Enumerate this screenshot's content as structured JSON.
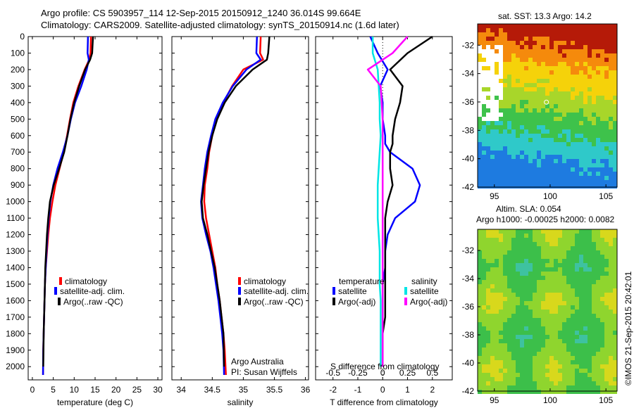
{
  "header": {
    "line1": "Argo profile: CS 5903957_114 12-Sep-2015 20150912_1240 36.014S 99.664E",
    "line2": "Climatology: CARS2009. Satellite-adjusted climatology: synTS_20150914.nc (1.6d later)"
  },
  "colors": {
    "climatology": "#ff0000",
    "satellite": "#0000ff",
    "argo": "#000000",
    "sat_salinity": "#00e5e5",
    "argo_salinity": "#ff00ff"
  },
  "chart_data": [
    {
      "type": "line",
      "xlabel": "temperature (deg C)",
      "ylabel": "",
      "xlim": [
        -1,
        31
      ],
      "ylim": [
        2080,
        0
      ],
      "xticks": [
        "0",
        "5",
        "10",
        "15",
        "20",
        "25",
        "30"
      ],
      "yticks": [
        "0",
        "100",
        "200",
        "300",
        "400",
        "500",
        "600",
        "700",
        "800",
        "900",
        "1000",
        "1100",
        "1200",
        "1300",
        "1400",
        "1500",
        "1600",
        "1700",
        "1800",
        "1900",
        "2000"
      ],
      "legend": [
        "climatology",
        "satellite-adj. clim.",
        "Argo(..raw -QC)"
      ],
      "series": [
        {
          "name": "climatology",
          "x": [
            14.0,
            13.9,
            13.6,
            12.5,
            11.0,
            9.8,
            9.0,
            8.3,
            7.5,
            6.5,
            5.5,
            4.8,
            4.2,
            3.8,
            3.5,
            3.2,
            3.0,
            2.9,
            2.8,
            2.7,
            2.6,
            2.55
          ],
          "y": [
            0,
            100,
            140,
            200,
            300,
            400,
            500,
            600,
            700,
            800,
            900,
            1000,
            1100,
            1200,
            1300,
            1400,
            1500,
            1600,
            1700,
            1800,
            1900,
            2050
          ]
        },
        {
          "name": "satellite-adj. clim.",
          "x": [
            13.3,
            13.2,
            13.5,
            13.0,
            11.7,
            10.2,
            9.2,
            8.4,
            7.3,
            6.0,
            5.0,
            4.3,
            3.9,
            3.6,
            3.4,
            3.2,
            3.0,
            2.9,
            2.8,
            2.7,
            2.6,
            2.55
          ],
          "y": [
            0,
            100,
            140,
            200,
            300,
            400,
            500,
            600,
            700,
            800,
            900,
            1000,
            1100,
            1200,
            1300,
            1400,
            1500,
            1600,
            1700,
            1800,
            1900,
            2050
          ]
        },
        {
          "name": "Argo(..raw -QC)",
          "x": [
            14.5,
            14.3,
            13.8,
            12.6,
            11.2,
            10.0,
            9.1,
            8.4,
            7.6,
            6.4,
            5.1,
            4.2,
            3.8,
            3.5,
            3.3,
            3.1,
            3.0,
            2.9,
            2.8,
            2.7,
            2.6
          ],
          "y": [
            0,
            100,
            140,
            200,
            300,
            400,
            500,
            600,
            700,
            800,
            900,
            1000,
            1100,
            1200,
            1300,
            1400,
            1500,
            1600,
            1700,
            1800,
            2000
          ]
        }
      ]
    },
    {
      "type": "line",
      "xlabel": "salinity",
      "xlim": [
        33.85,
        36.05
      ],
      "ylim": [
        2080,
        0
      ],
      "xticks": [
        "34",
        "34.5",
        "35",
        "35.5",
        "36"
      ],
      "legend": [
        "climatology",
        "satellite-adj. clim.",
        "Argo(..raw -QC)"
      ],
      "series": [
        {
          "name": "climatology",
          "x": [
            35.28,
            35.27,
            35.32,
            35.0,
            34.82,
            34.68,
            34.57,
            34.5,
            34.45,
            34.42,
            34.38,
            34.37,
            34.4,
            34.45,
            34.5,
            34.55,
            34.58,
            34.62,
            34.65,
            34.68,
            34.7,
            34.72
          ],
          "y": [
            0,
            100,
            140,
            200,
            300,
            400,
            500,
            600,
            700,
            800,
            900,
            1000,
            1100,
            1200,
            1300,
            1400,
            1500,
            1600,
            1700,
            1800,
            1900,
            2050
          ]
        },
        {
          "name": "satellite-adj. clim.",
          "x": [
            35.22,
            35.21,
            35.28,
            35.05,
            34.83,
            34.67,
            34.55,
            34.48,
            34.42,
            34.38,
            34.35,
            34.32,
            34.34,
            34.4,
            34.47,
            34.52,
            34.56,
            34.6,
            34.63,
            34.66,
            34.68,
            34.69
          ],
          "y": [
            0,
            100,
            140,
            200,
            300,
            400,
            500,
            600,
            700,
            800,
            900,
            1000,
            1100,
            1200,
            1300,
            1400,
            1500,
            1600,
            1700,
            1800,
            1900,
            2050
          ]
        },
        {
          "name": "Argo(..raw -QC)",
          "x": [
            35.42,
            35.4,
            35.38,
            35.15,
            34.88,
            34.7,
            34.58,
            34.5,
            34.44,
            34.4,
            34.36,
            34.33,
            34.35,
            34.42,
            34.48,
            34.54,
            34.58,
            34.62,
            34.65,
            34.68,
            34.69
          ],
          "y": [
            0,
            100,
            140,
            200,
            300,
            400,
            500,
            600,
            700,
            800,
            900,
            1000,
            1100,
            1200,
            1300,
            1400,
            1500,
            1600,
            1700,
            1800,
            2000
          ]
        }
      ]
    },
    {
      "type": "line",
      "xlabel": "T difference from climatology",
      "xlabel_top": "S difference from climatology",
      "xlim": [
        -2.7,
        2.8
      ],
      "ylim": [
        2080,
        0
      ],
      "xticks": [
        "-2",
        "-1",
        "0",
        "1",
        "2"
      ],
      "xticks_salinity": [
        "-0.5",
        "-0.25",
        "0",
        "0.25",
        "0.5"
      ],
      "legend_titles": [
        "temperature",
        "salinity"
      ],
      "legend": [
        "satellite",
        "Argo(-adj)",
        "satellite",
        "Argo(-adj)"
      ],
      "series": [
        {
          "name": "satellite",
          "x": [
            -0.5,
            -0.2,
            0.2,
            -0.1,
            0.0,
            0.0,
            0.1,
            0.1,
            0.3,
            1.2,
            1.5,
            1.3,
            0.5,
            0.2,
            0.1,
            0.1,
            0.0,
            0.0,
            0.0,
            0.0,
            0.0
          ],
          "y": [
            0,
            100,
            200,
            300,
            400,
            500,
            600,
            650,
            700,
            800,
            900,
            1000,
            1100,
            1200,
            1300,
            1400,
            1500,
            1600,
            1700,
            1800,
            2000
          ]
        },
        {
          "name": "Argo(-adj)",
          "x": [
            2.0,
            1.0,
            0.3,
            0.8,
            0.7,
            0.5,
            0.4,
            0.4,
            0.3,
            0.3,
            0.4,
            0.2,
            0.1,
            0.1,
            0.1,
            0.1,
            0.1,
            0.1,
            0.1,
            0.0,
            0.0
          ],
          "y": [
            0,
            100,
            200,
            300,
            400,
            500,
            600,
            650,
            700,
            800,
            900,
            1000,
            1100,
            1200,
            1300,
            1400,
            1500,
            1600,
            1700,
            1800,
            2000
          ]
        },
        {
          "name": "satellite",
          "x": [
            -0.1,
            -0.1,
            -0.05,
            -0.04,
            -0.03,
            -0.03,
            -0.02,
            -0.03,
            -0.04,
            -0.05,
            -0.05,
            -0.05,
            -0.04,
            -0.03,
            -0.03,
            -0.03,
            -0.02,
            -0.02,
            -0.02,
            -0.02
          ],
          "y": [
            0,
            100,
            200,
            300,
            400,
            500,
            600,
            700,
            800,
            900,
            1000,
            1100,
            1200,
            1300,
            1400,
            1500,
            1600,
            1700,
            1800,
            2000
          ]
        },
        {
          "name": "Argo(-adj)",
          "x": [
            0.25,
            0.1,
            -0.15,
            -0.02,
            -0.01,
            0.0,
            0.0,
            0.0,
            0.0,
            0.0,
            0.0,
            0.0,
            0.0,
            0.0,
            0.0,
            0.0,
            0.0,
            0.0,
            0.0,
            0.0
          ],
          "y": [
            0,
            100,
            200,
            300,
            400,
            500,
            600,
            700,
            800,
            900,
            1000,
            1100,
            1200,
            1300,
            1400,
            1500,
            1600,
            1700,
            1800,
            2000
          ]
        }
      ]
    },
    {
      "type": "heatmap",
      "title": "sat. SST: 13.3 Argo: 14.2",
      "xlim": [
        93.5,
        106
      ],
      "ylim": [
        -42,
        -30.5
      ],
      "xticks": [
        "95",
        "100",
        "105"
      ],
      "yticks": [
        "-32",
        "-34",
        "-36",
        "-38",
        "-40",
        "-42"
      ]
    },
    {
      "type": "heatmap",
      "title_line1": "Altim. SLA: 0.054",
      "title_line2": "Argo h1000: -0.00025 h2000: 0.0082",
      "xlim": [
        93.5,
        106
      ],
      "ylim": [
        -42,
        -30.5
      ],
      "xticks": [
        "95",
        "100",
        "105"
      ],
      "yticks": [
        "-32",
        "-34",
        "-36",
        "-38",
        "-40",
        "-42"
      ]
    }
  ],
  "annotations": {
    "argo_inst": "Argo Australia",
    "argo_pi": "PI: Susan Wijffels",
    "credit": "©IMOS 21-Sep-2015 20:42:01"
  }
}
